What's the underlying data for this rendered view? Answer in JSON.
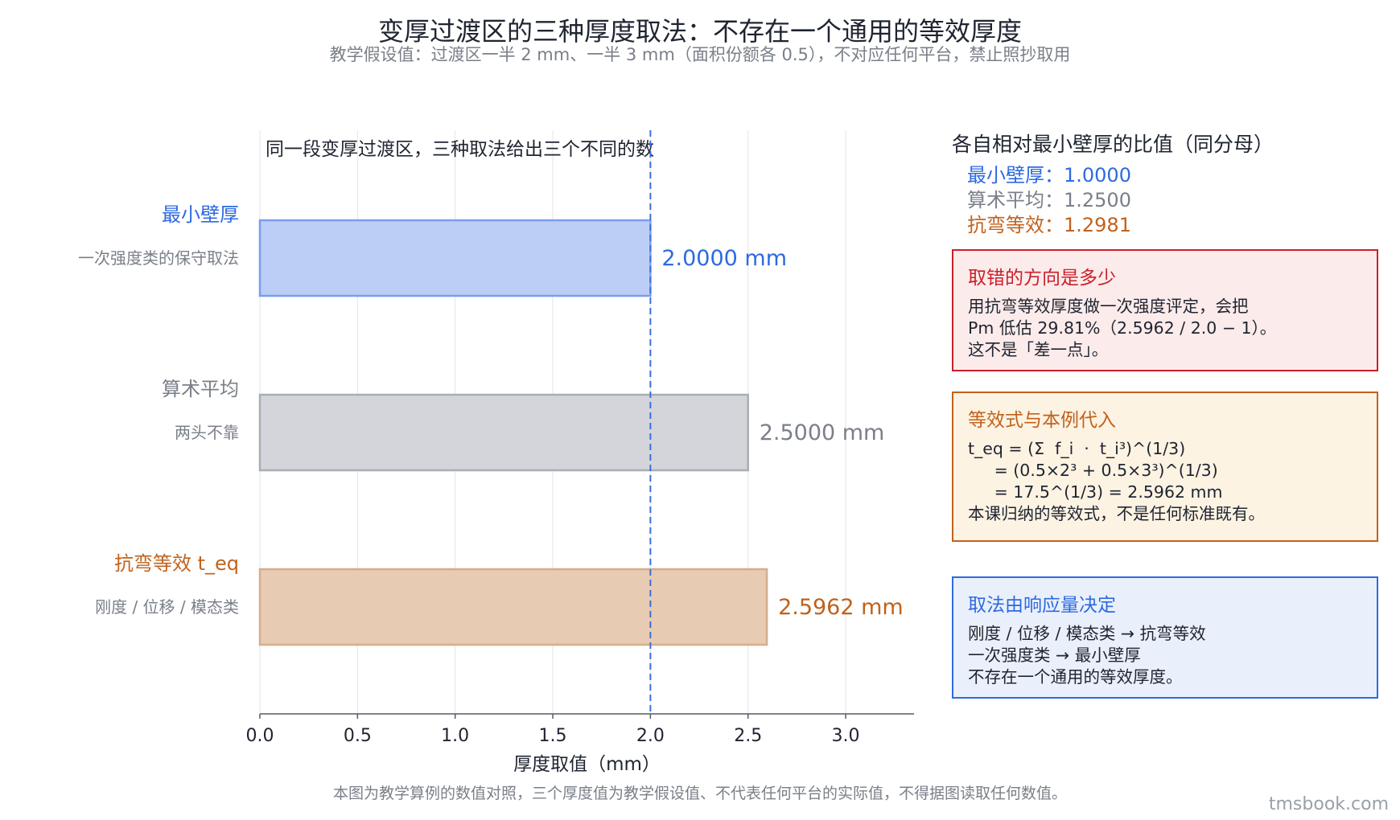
{
  "title": "变厚过渡区的三种厚度取法：不存在一个通用的等效厚度",
  "subtitle": "教学假设值：过渡区一半 2 mm、一半 3 mm（面积份额各 0.5），不对应任何平台，禁止照抄取用",
  "footer": "本图为教学算例的数值对照，三个厚度值为教学假设值、不代表任何平台的实际值，不得据图读取任何数值。",
  "watermark": "tmsbook.com",
  "chart_data": {
    "type": "bar",
    "orientation": "horizontal",
    "annotation": "同一段变厚过渡区，三种取法给出三个不同的数",
    "xlabel": "厚度取值（mm）",
    "xlim": [
      0,
      3.35
    ],
    "xticks": [
      0.0,
      0.5,
      1.0,
      1.5,
      2.0,
      2.5,
      3.0
    ],
    "xtick_labels": [
      "0.0",
      "0.5",
      "1.0",
      "1.5",
      "2.0",
      "2.5",
      "3.0"
    ],
    "grid": "vertical",
    "reference_line": {
      "x": 2.0,
      "style": "dashed",
      "color": "#3a6fe0"
    },
    "bars": [
      {
        "name": "最小壁厚",
        "sublabel": "一次强度类的保守取法",
        "value": 2.0,
        "value_label": "2.0000 mm",
        "fill": "#bccdf6",
        "stroke": "#7a9df0",
        "text_color": "#2d6ae0"
      },
      {
        "name": "算术平均",
        "sublabel": "两头不靠",
        "value": 2.5,
        "value_label": "2.5000 mm",
        "fill": "#d3d5da",
        "stroke": "#a9adb5",
        "text_color": "#7a7f88"
      },
      {
        "name": "抗弯等效 t_eq",
        "sublabel": "刚度 / 位移 / 模态类",
        "value": 2.5962,
        "value_label": "2.5962 mm",
        "fill": "#e8cbb3",
        "stroke": "#d7ad8b",
        "text_color": "#c0621c"
      }
    ]
  },
  "ratios": {
    "title": "各自相对最小壁厚的比值（同分母）",
    "items": [
      {
        "text": "最小壁厚：1.0000",
        "color": "#2d6ae0"
      },
      {
        "text": "算术平均：1.2500",
        "color": "#7a7f88"
      },
      {
        "text": "抗弯等效：1.2981",
        "color": "#c0621c"
      }
    ]
  },
  "boxes": [
    {
      "title": "取错的方向是多少",
      "lines": [
        "用抗弯等效厚度做一次强度评定，会把",
        "Pm 低估 29.81%（2.5962 / 2.0 − 1）。",
        "这不是「差一点」。"
      ],
      "border": "#c8202a",
      "bg": "#fcebeb",
      "title_color": "#c8202a"
    },
    {
      "title": "等效式与本例代入",
      "lines": [
        "t_eq = (Σ  f_i  ·  t_i³)^(1/3)",
        "     = (0.5×2³ + 0.5×3³)^(1/3)",
        "     = 17.5^(1/3) = 2.5962 mm",
        "本课归纳的等效式，不是任何标准既有。"
      ],
      "border": "#c0621c",
      "bg": "#fdf3e3",
      "title_color": "#c0621c"
    },
    {
      "title": "取法由响应量决定",
      "lines": [
        "刚度 / 位移 / 模态类 → 抗弯等效",
        "一次强度类 → 最小壁厚",
        "不存在一个通用的等效厚度。"
      ],
      "border": "#2d6ae0",
      "bg": "#eaf0fb",
      "title_color": "#2d6ae0"
    }
  ]
}
